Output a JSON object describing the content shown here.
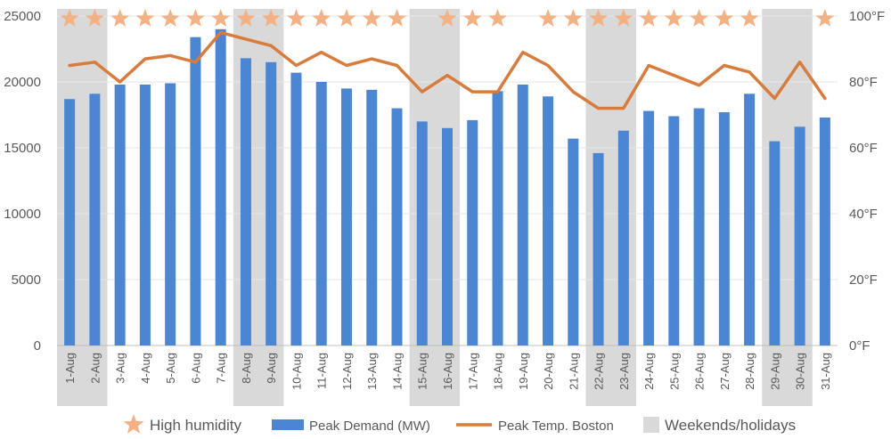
{
  "chart_data": {
    "type": "bar",
    "categories": [
      "1-Aug",
      "2-Aug",
      "3-Aug",
      "4-Aug",
      "5-Aug",
      "6-Aug",
      "7-Aug",
      "8-Aug",
      "9-Aug",
      "10-Aug",
      "11-Aug",
      "12-Aug",
      "13-Aug",
      "14-Aug",
      "15-Aug",
      "16-Aug",
      "17-Aug",
      "18-Aug",
      "19-Aug",
      "20-Aug",
      "21-Aug",
      "22-Aug",
      "23-Aug",
      "24-Aug",
      "25-Aug",
      "26-Aug",
      "27-Aug",
      "28-Aug",
      "29-Aug",
      "30-Aug",
      "31-Aug"
    ],
    "series": [
      {
        "name": "Peak Demand (MW)",
        "type": "bar",
        "axis": "left",
        "color": "#4a86d4",
        "values": [
          18700,
          19100,
          19800,
          19800,
          19900,
          23400,
          24000,
          21800,
          21500,
          20700,
          20000,
          19500,
          19400,
          18000,
          17000,
          16500,
          17100,
          19300,
          19800,
          18900,
          15700,
          14600,
          16300,
          17800,
          17400,
          18000,
          17700,
          19100,
          15500,
          16600,
          17300
        ]
      },
      {
        "name": "Peak Temp. Boston",
        "type": "line",
        "axis": "right",
        "color": "#d97b3a",
        "values": [
          85,
          86,
          80,
          87,
          88,
          86,
          95,
          93,
          91,
          85,
          89,
          85,
          87,
          85,
          77,
          82,
          77,
          77,
          89,
          85,
          77,
          72,
          72,
          85,
          82,
          79,
          85,
          83,
          75,
          86,
          75
        ]
      },
      {
        "name": "High humidity",
        "type": "marker",
        "color": "#f4b183",
        "flags": [
          1,
          1,
          1,
          1,
          1,
          1,
          1,
          1,
          1,
          1,
          1,
          1,
          1,
          1,
          0,
          1,
          1,
          1,
          0,
          1,
          1,
          1,
          1,
          1,
          1,
          1,
          1,
          1,
          0,
          0,
          1
        ]
      },
      {
        "name": "Weekends/holidays",
        "type": "band",
        "color": "#d9d9d9",
        "flags": [
          1,
          1,
          0,
          0,
          0,
          0,
          0,
          1,
          1,
          0,
          0,
          0,
          0,
          0,
          1,
          1,
          0,
          0,
          0,
          0,
          0,
          1,
          1,
          0,
          0,
          0,
          0,
          0,
          1,
          1,
          0
        ]
      }
    ],
    "y_left": {
      "ylim": [
        0,
        25000
      ],
      "ticks": [
        "0",
        "5000",
        "10000",
        "15000",
        "20000",
        "25000"
      ],
      "values": [
        0,
        5000,
        10000,
        15000,
        20000,
        25000
      ]
    },
    "y_right": {
      "ylim": [
        0,
        100
      ],
      "ticks": [
        "0°F",
        "20°F",
        "40°F",
        "60°F",
        "80°F",
        "100°F"
      ],
      "values": [
        0,
        20,
        40,
        60,
        80,
        100
      ]
    },
    "legend": {
      "placement": "bottom",
      "items": [
        {
          "label": "High humidity",
          "symbol": "star"
        },
        {
          "label": "Peak Demand (MW)",
          "symbol": "bar"
        },
        {
          "label": "Peak Temp. Boston",
          "symbol": "line"
        },
        {
          "label": "Weekends/holidays",
          "symbol": "square"
        }
      ]
    },
    "grid": true
  }
}
